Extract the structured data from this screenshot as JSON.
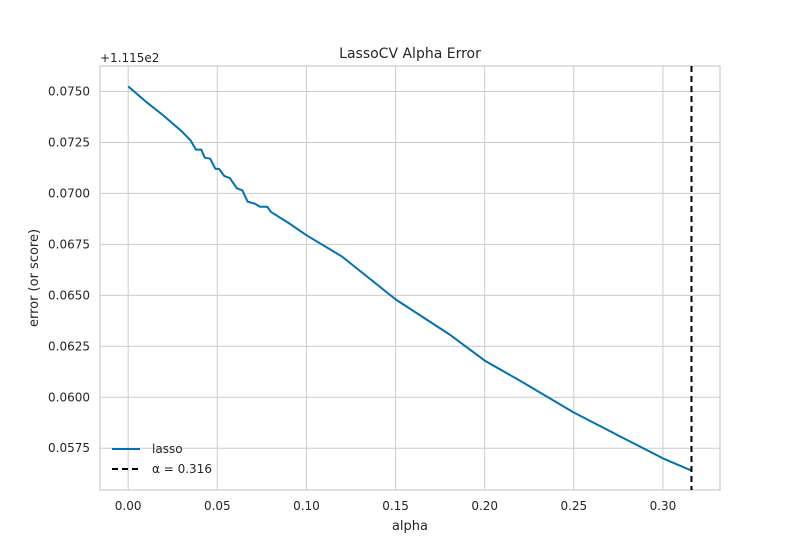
{
  "chart_data": {
    "type": "line",
    "title": "LassoCV Alpha Error",
    "xlabel": "alpha",
    "ylabel": "error (or score)",
    "y_offset_label": "+1.115e2",
    "xlim": [
      -0.0158,
      0.332
    ],
    "ylim": [
      0.05545,
      0.07625
    ],
    "x_ticks": [
      0.0,
      0.05,
      0.1,
      0.15,
      0.2,
      0.25,
      0.3
    ],
    "x_tick_labels": [
      "0.00",
      "0.05",
      "0.10",
      "0.15",
      "0.20",
      "0.25",
      "0.30"
    ],
    "y_ticks": [
      0.0575,
      0.06,
      0.0625,
      0.065,
      0.0675,
      0.07,
      0.0725,
      0.075
    ],
    "y_tick_labels": [
      "0.0575",
      "0.0600",
      "0.0625",
      "0.0650",
      "0.0675",
      "0.0700",
      "0.0725",
      "0.0750"
    ],
    "grid": true,
    "legend_position": "lower-left",
    "series": [
      {
        "name": "lasso",
        "color": "#0072b2",
        "x": [
          0.0,
          0.01,
          0.02,
          0.03,
          0.035,
          0.038,
          0.041,
          0.043,
          0.046,
          0.049,
          0.051,
          0.054,
          0.057,
          0.061,
          0.064,
          0.067,
          0.071,
          0.074,
          0.078,
          0.08,
          0.09,
          0.1,
          0.12,
          0.15,
          0.18,
          0.2,
          0.22,
          0.25,
          0.28,
          0.3,
          0.316
        ],
        "y": [
          0.07525,
          0.0745,
          0.0738,
          0.07305,
          0.0726,
          0.07215,
          0.07215,
          0.07175,
          0.0717,
          0.0712,
          0.0712,
          0.07085,
          0.07075,
          0.07025,
          0.07015,
          0.0696,
          0.0695,
          0.06935,
          0.06935,
          0.0691,
          0.06855,
          0.06795,
          0.0669,
          0.0648,
          0.0631,
          0.0618,
          0.0608,
          0.05925,
          0.0579,
          0.057,
          0.0564
        ]
      }
    ],
    "annotations": [
      {
        "type": "vline",
        "x": 0.316,
        "color": "#000000",
        "style": "dashed",
        "label": "α = 0.316"
      }
    ]
  }
}
